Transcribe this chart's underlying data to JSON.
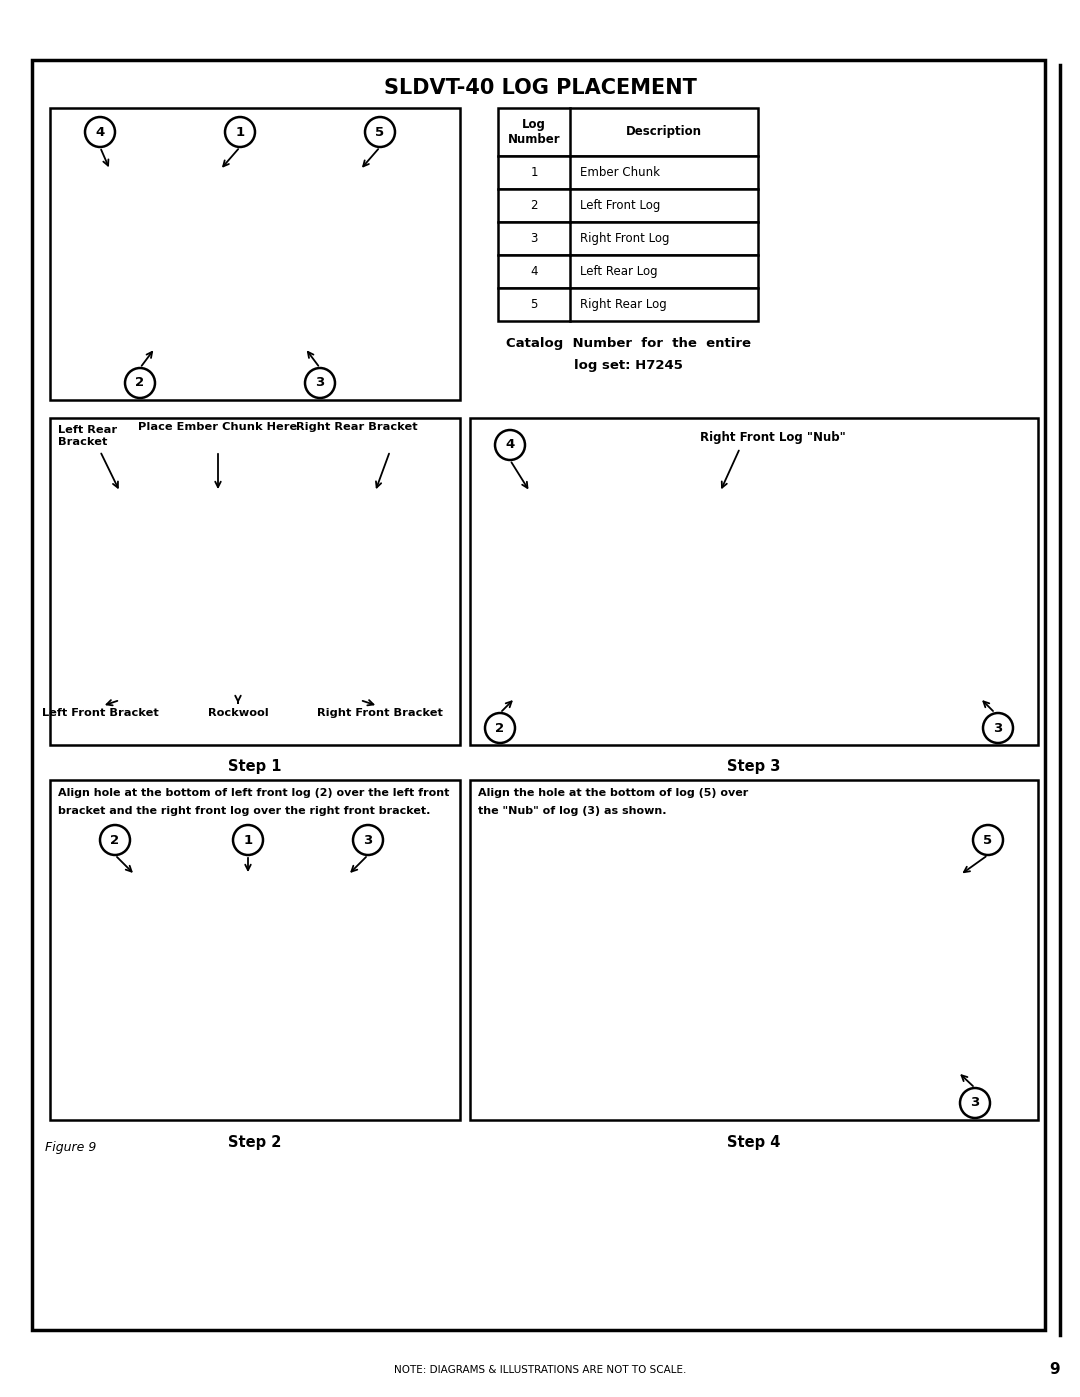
{
  "title": "SLDVT-40 LOG PLACEMENT",
  "page_number": "9",
  "footer_note": "NOTE: DIAGRAMS & ILLUSTRATIONS ARE NOT TO SCALE.",
  "figure_label": "Figure 9",
  "table_rows": [
    [
      "1",
      "Ember Chunk"
    ],
    [
      "2",
      "Left Front Log"
    ],
    [
      "3",
      "Right Front Log"
    ],
    [
      "4",
      "Left Rear Log"
    ],
    [
      "5",
      "Right Rear Log"
    ]
  ],
  "catalog_text_line1": "Catalog  Number  for  the  entire",
  "catalog_text_line2": "log set: H7245",
  "step1_caption": "Step 1",
  "step2_caption": "Step 2",
  "step3_caption": "Step 3",
  "step4_caption": "Step 4",
  "step2_text_line1": "Align hole at the bottom of left front log (2) over the left front",
  "step2_text_line2": "bracket and the right front log over the right front bracket.",
  "step3_nub_label": "Right Front Log \"Nub\"",
  "step4_text_line1": "Align the hole at the bottom of log (5) over",
  "step4_text_line2": "the \"Nub\" of log (3) as shown.",
  "bg_color": "#ffffff",
  "border_color": "#000000",
  "photo_color_dark": "#606060",
  "photo_color_mid": "#888888",
  "photo_color_light": "#b0b0b0"
}
